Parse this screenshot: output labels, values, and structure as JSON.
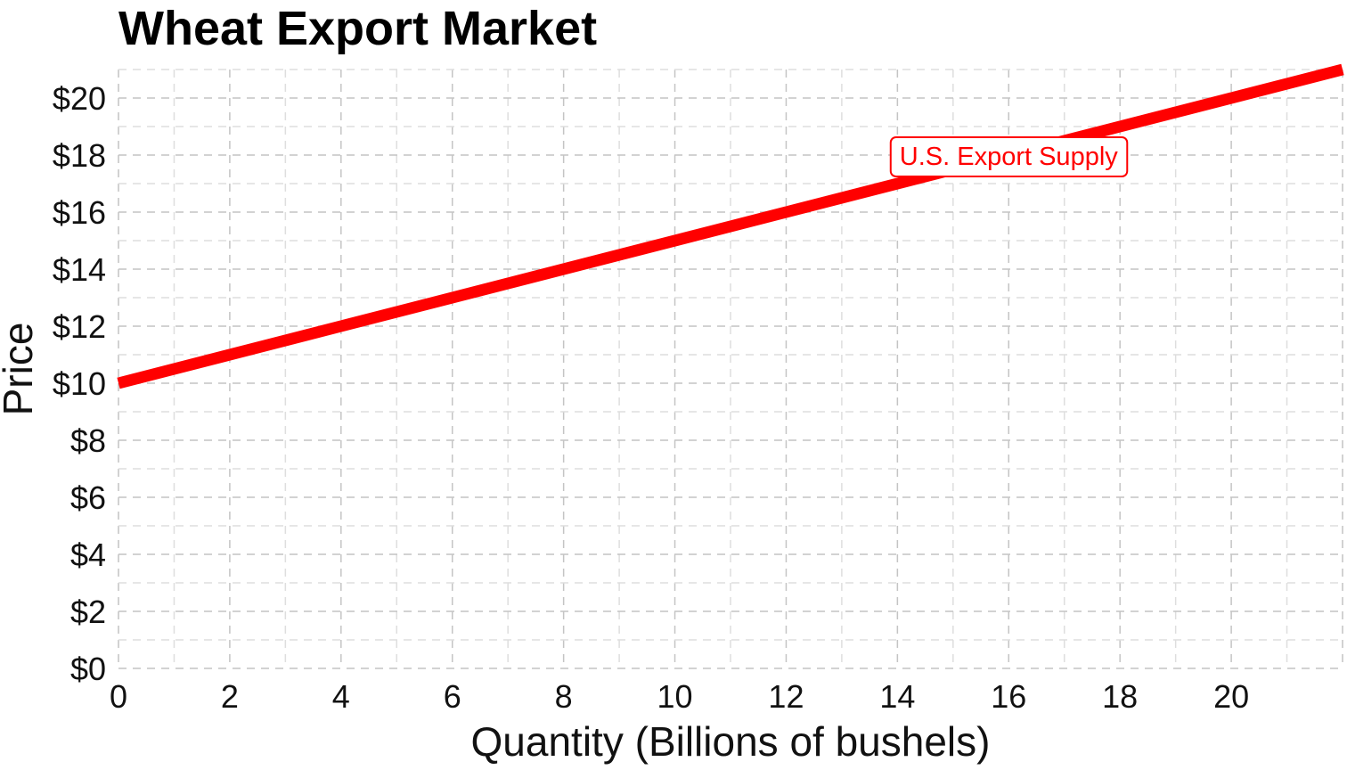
{
  "chart_data": {
    "type": "line",
    "title": "Wheat Export Market",
    "xlabel": "Quantity (Billions of bushels)",
    "ylabel": "Price",
    "xlim": [
      0,
      22
    ],
    "ylim": [
      0,
      21
    ],
    "x_ticks": [
      0,
      2,
      4,
      6,
      8,
      10,
      12,
      14,
      16,
      18,
      20
    ],
    "x_tick_labels": [
      "0",
      "2",
      "4",
      "6",
      "8",
      "10",
      "12",
      "14",
      "16",
      "18",
      "20"
    ],
    "y_ticks": [
      0,
      2,
      4,
      6,
      8,
      10,
      12,
      14,
      16,
      18,
      20
    ],
    "y_tick_labels": [
      "$0",
      "$2",
      "$4",
      "$6",
      "$8",
      "$10",
      "$12",
      "$14",
      "$16",
      "$18",
      "$20"
    ],
    "grid": "dashed major and minor",
    "series": [
      {
        "name": "U.S. Export Supply",
        "color": "#ff0000",
        "x": [
          0,
          22
        ],
        "y": [
          10,
          21
        ]
      }
    ],
    "annotations": [
      {
        "text": "U.S. Export Supply",
        "x": 16,
        "y": 18,
        "color": "#ff0000"
      }
    ]
  }
}
